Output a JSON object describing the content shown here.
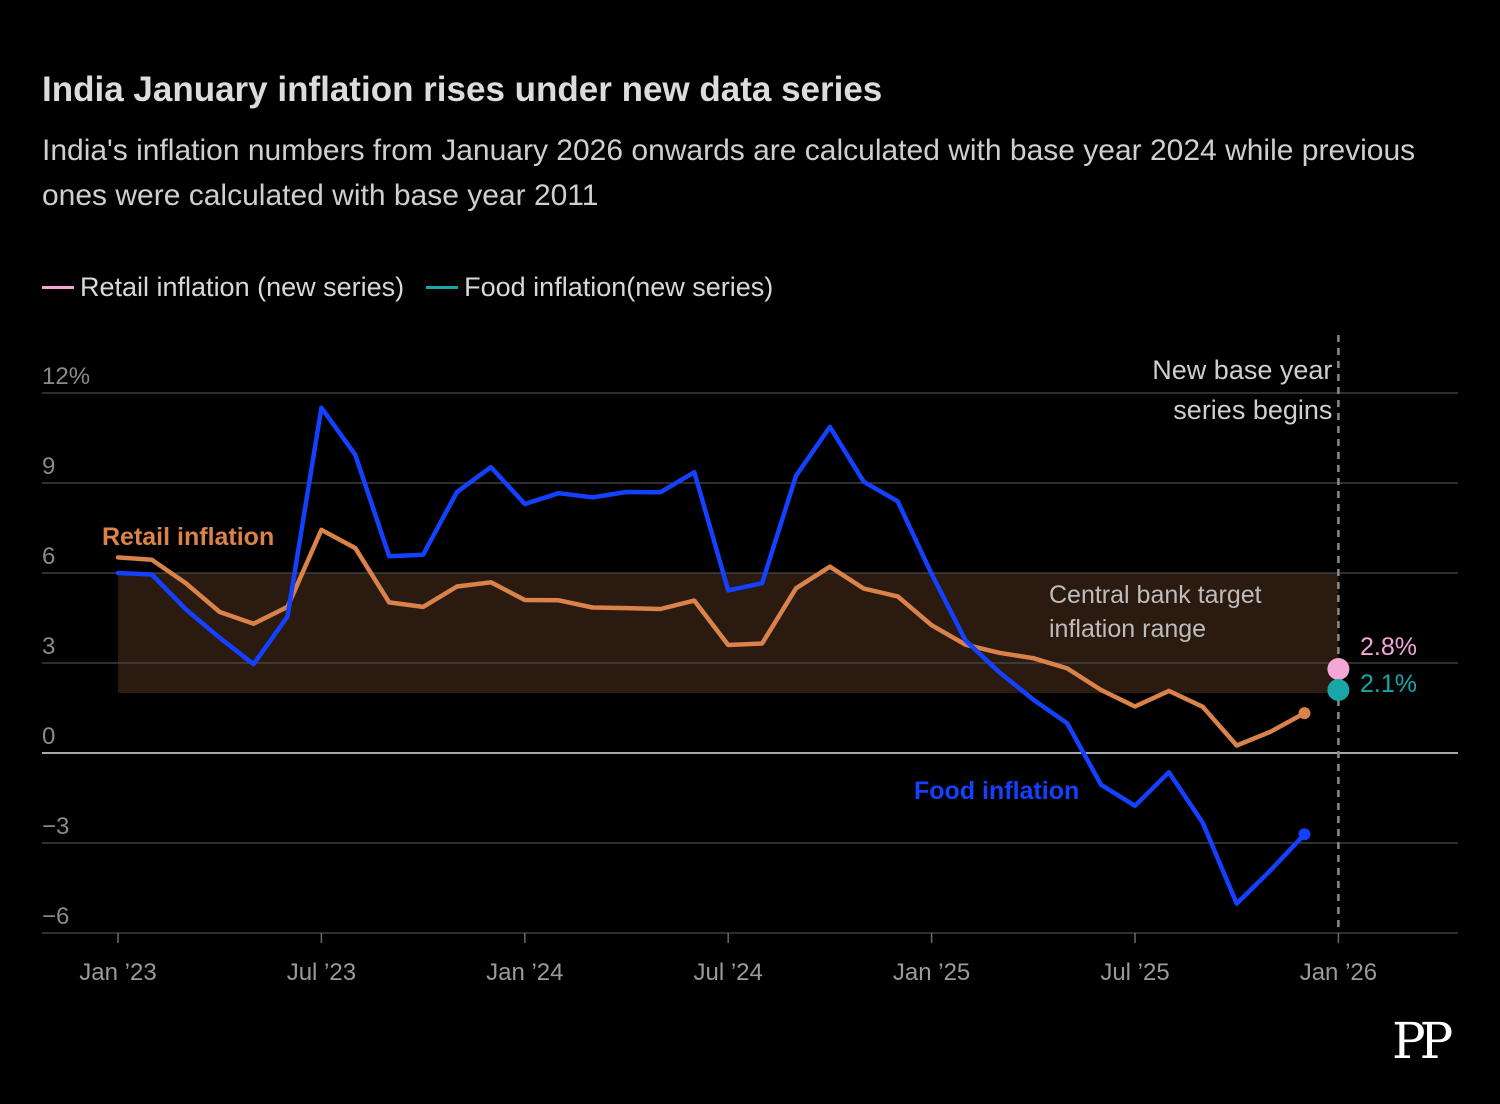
{
  "title": "India January inflation rises under new data series",
  "subtitle": "India's inflation numbers from January 2026 onwards are calculated with base year 2024 while previous ones were calculated with base year 2011",
  "legend": [
    {
      "label": "Retail inflation (new series)",
      "color": "#f4a6d7"
    },
    {
      "label": "Food inflation(new series)",
      "color": "#1aa6a6"
    }
  ],
  "logo": "PP",
  "chart_data": {
    "type": "line",
    "ylim": [
      -6,
      12
    ],
    "y_ticks": [
      {
        "value": 12,
        "label": "12%"
      },
      {
        "value": 9,
        "label": "9"
      },
      {
        "value": 6,
        "label": "6"
      },
      {
        "value": 3,
        "label": "3"
      },
      {
        "value": 0,
        "label": "0"
      },
      {
        "value": -3,
        "label": "−3"
      },
      {
        "value": -6,
        "label": "−6"
      }
    ],
    "x_ticks": [
      {
        "month_index": 0,
        "label": "Jan ’23"
      },
      {
        "month_index": 6,
        "label": "Jul ’23"
      },
      {
        "month_index": 12,
        "label": "Jan ’24"
      },
      {
        "month_index": 18,
        "label": "Jul ’24"
      },
      {
        "month_index": 24,
        "label": "Jan ’25"
      },
      {
        "month_index": 30,
        "label": "Jul ’25"
      },
      {
        "month_index": 36,
        "label": "Jan ’26"
      }
    ],
    "target_band": {
      "from": 2,
      "to": 6,
      "label_line1": "Central bank target",
      "label_line2": "inflation range",
      "color": "#2a1a10"
    },
    "series": [
      {
        "name": "Retail inflation",
        "label": "Retail inflation",
        "color": "#d9824a",
        "values": [
          6.52,
          6.44,
          5.66,
          4.7,
          4.31,
          4.87,
          7.44,
          6.83,
          5.02,
          4.87,
          5.55,
          5.69,
          5.1,
          5.09,
          4.85,
          4.83,
          4.8,
          5.08,
          3.6,
          3.65,
          5.49,
          6.21,
          5.48,
          5.22,
          4.26,
          3.61,
          3.34,
          3.16,
          2.82,
          2.1,
          1.55,
          2.07,
          1.54,
          0.25,
          0.71,
          1.33
        ]
      },
      {
        "name": "Food inflation",
        "label": "Food inflation",
        "color": "#1440ff",
        "values": [
          6.0,
          5.95,
          4.79,
          3.84,
          2.96,
          4.55,
          11.51,
          9.94,
          6.56,
          6.61,
          8.7,
          9.53,
          8.3,
          8.66,
          8.52,
          8.7,
          8.69,
          9.36,
          5.42,
          5.66,
          9.24,
          10.87,
          9.04,
          8.39,
          5.97,
          3.75,
          2.69,
          1.78,
          0.99,
          -1.06,
          -1.76,
          -0.64,
          -2.33,
          -5.02,
          -3.91,
          -2.71
        ]
      }
    ],
    "new_series_points": [
      {
        "name": "Retail inflation (new series)",
        "month_index": 36,
        "value": 2.8,
        "label": "2.8%",
        "color": "#f4a6d7"
      },
      {
        "name": "Food inflation (new series)",
        "month_index": 36,
        "value": 2.1,
        "label": "2.1%",
        "color": "#1aa6a6"
      }
    ],
    "marker": {
      "month_index": 36,
      "label_line1": "New base year",
      "label_line2": "series begins"
    }
  }
}
